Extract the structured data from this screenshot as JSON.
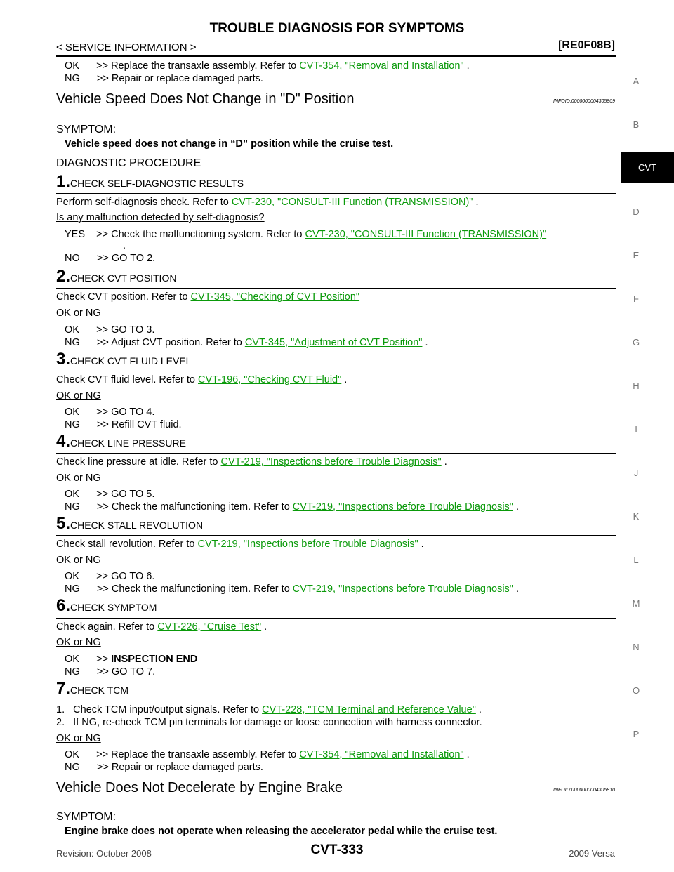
{
  "header": {
    "title": "TROUBLE DIAGNOSIS FOR SYMPTOMS",
    "breadcrumb": "< SERVICE INFORMATION >",
    "code": "[RE0F08B]"
  },
  "intro": {
    "ok_prefix": "OK      >> Replace the transaxle assembly. Refer to ",
    "ok_link": "CVT-354, \"Removal and Installation\"",
    "ok_suffix": " .",
    "ng": "NG      >> Repair or replace damaged parts."
  },
  "section1": {
    "heading": "Vehicle Speed Does Not Change in \"D\" Position",
    "infoid": "INFOID:0000000004305809",
    "symptom_label": "SYMPTOM:",
    "symptom_text": "Vehicle speed does not change in “D” position while the cruise test.",
    "diag_label": "DIAGNOSTIC PROCEDURE"
  },
  "steps": [
    {
      "num": "1.",
      "title": "CHECK SELF-DIAGNOSTIC RESULTS"
    },
    {
      "num": "2.",
      "title": "CHECK CVT POSITION"
    },
    {
      "num": "3.",
      "title": "CHECK CVT FLUID LEVEL"
    },
    {
      "num": "4.",
      "title": "CHECK LINE PRESSURE"
    },
    {
      "num": "5.",
      "title": "CHECK STALL REVOLUTION"
    },
    {
      "num": "6.",
      "title": "CHECK SYMPTOM"
    },
    {
      "num": "7.",
      "title": "CHECK TCM"
    }
  ],
  "s1": {
    "line_prefix": "Perform self-diagnosis check. Refer to ",
    "link": "CVT-230, \"CONSULT-III Function (TRANSMISSION)\"",
    "suffix": " .",
    "question": "Is any malfunction detected by self-diagnosis?",
    "yes_prefix": "YES    >> Check the malfunctioning system. Refer to ",
    "yes_link": "CVT-230, \"CONSULT-III Function (TRANSMISSION)\"",
    "yes_dot": ".",
    "no": "NO      >> GO TO 2."
  },
  "s2": {
    "line_prefix": "Check CVT position. Refer to ",
    "link": "CVT-345, \"Checking of CVT Position\"",
    "oknq": "OK or NG",
    "ok": "OK      >> GO TO 3.",
    "ng_prefix": "NG      >> Adjust CVT position. Refer to ",
    "ng_link": "CVT-345, \"Adjustment of CVT Position\"",
    "ng_suffix": " ."
  },
  "s3": {
    "line_prefix": "Check CVT fluid level. Refer to ",
    "link": "CVT-196, \"Checking CVT Fluid\"",
    "suffix": " .",
    "oknq": "OK or NG",
    "ok": "OK      >> GO TO 4.",
    "ng": "NG      >> Refill CVT fluid."
  },
  "s4": {
    "line_prefix": "Check line pressure at idle. Refer to ",
    "link": "CVT-219, \"Inspections before Trouble Diagnosis\"",
    "suffix": " .",
    "oknq": "OK or NG",
    "ok": "OK      >> GO TO 5.",
    "ng_prefix": "NG      >> Check the malfunctioning item. Refer to ",
    "ng_link": "CVT-219, \"Inspections before Trouble Diagnosis\"",
    "ng_suffix": " ."
  },
  "s5": {
    "line_prefix": "Check stall revolution. Refer to ",
    "link": "CVT-219, \"Inspections before Trouble Diagnosis\"",
    "suffix": " .",
    "oknq": "OK or NG",
    "ok": "OK      >> GO TO 6.",
    "ng_prefix": "NG      >> Check the malfunctioning item. Refer to ",
    "ng_link": "CVT-219, \"Inspections before Trouble Diagnosis\"",
    "ng_suffix": " ."
  },
  "s6": {
    "line_prefix": "Check again. Refer to ",
    "link": "CVT-226, \"Cruise Test\"",
    "suffix": " .",
    "oknq": "OK or NG",
    "ok_prefix": "OK      >> ",
    "ok_bold": "INSPECTION END",
    "ng": "NG      >> GO TO 7."
  },
  "s7": {
    "line1_prefix": "1.   Check TCM input/output signals. Refer to ",
    "line1_link": "CVT-228, \"TCM Terminal and Reference Value\"",
    "line1_suffix": " .",
    "line2": "2.   If NG, re-check TCM pin terminals for damage or loose connection with harness connector.",
    "oknq": "OK or NG",
    "ok_prefix": "OK      >> Replace the transaxle assembly. Refer to ",
    "ok_link": "CVT-354, \"Removal and Installation\"",
    "ok_suffix": " .",
    "ng": "NG      >> Repair or replace damaged parts."
  },
  "section2": {
    "heading": "Vehicle Does Not Decelerate by Engine Brake",
    "infoid": "INFOID:0000000004305810",
    "symptom_label": "SYMPTOM:",
    "symptom_text": "Engine brake does not operate when releasing the accelerator pedal while the cruise test."
  },
  "sidebar": {
    "letters": [
      "A",
      "B",
      "D",
      "E",
      "F",
      "G",
      "H",
      "I",
      "J",
      "K",
      "L",
      "M",
      "N",
      "O",
      "P"
    ],
    "active": "CVT"
  },
  "footer": {
    "revision": "Revision: October 2008",
    "page": "CVT-333",
    "model": "2009 Versa"
  }
}
